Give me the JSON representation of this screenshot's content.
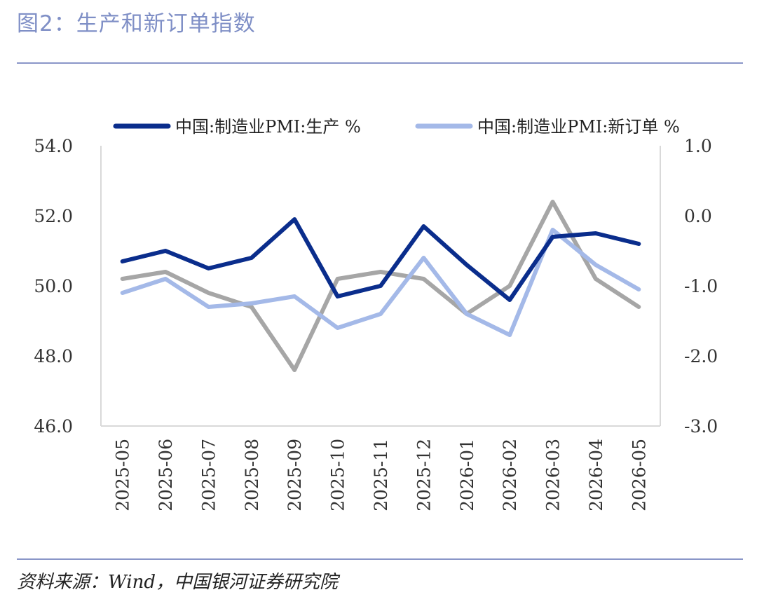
{
  "title": "图2：生产和新订单指数",
  "source": "资料来源：Wind，中国银河证券研究院",
  "chart_data": {
    "type": "line",
    "x": [
      "2025-05",
      "2025-06",
      "2025-07",
      "2025-08",
      "2025-09",
      "2025-10",
      "2025-11",
      "2025-12",
      "2026-01",
      "2026-02",
      "2026-03",
      "2026-04",
      "2026-05"
    ],
    "y_left": {
      "min": 46,
      "max": 54,
      "ticks": [
        "54.0",
        "52.0",
        "50.0",
        "48.0",
        "46.0"
      ]
    },
    "y_right": {
      "min": -3,
      "max": 1,
      "ticks": [
        "1.0",
        "0.0",
        "-1.0",
        "-2.0",
        "-3.0"
      ]
    },
    "series": [
      {
        "name": "中国:制造业PMI:生产 %",
        "axis": "left",
        "color": "#0a2d8c",
        "values": [
          50.7,
          51.0,
          50.5,
          50.8,
          51.9,
          49.7,
          50.0,
          51.7,
          50.6,
          49.6,
          51.4,
          51.5,
          51.2
        ]
      },
      {
        "name": "中国:制造业PMI:新订单 %",
        "axis": "left",
        "color": "#a4b9e8",
        "values": [
          49.8,
          50.2,
          49.4,
          49.5,
          49.7,
          48.8,
          49.2,
          50.8,
          49.2,
          48.6,
          51.6,
          50.6,
          49.9
        ]
      },
      {
        "name": "",
        "axis": "right",
        "color": "#a6a6a6",
        "values": [
          -0.9,
          -0.8,
          -1.1,
          -1.3,
          -2.2,
          -0.9,
          -0.8,
          -0.9,
          -1.4,
          -1.0,
          0.2,
          -0.9,
          -1.3
        ]
      }
    ],
    "legend": "top",
    "grid": false
  }
}
